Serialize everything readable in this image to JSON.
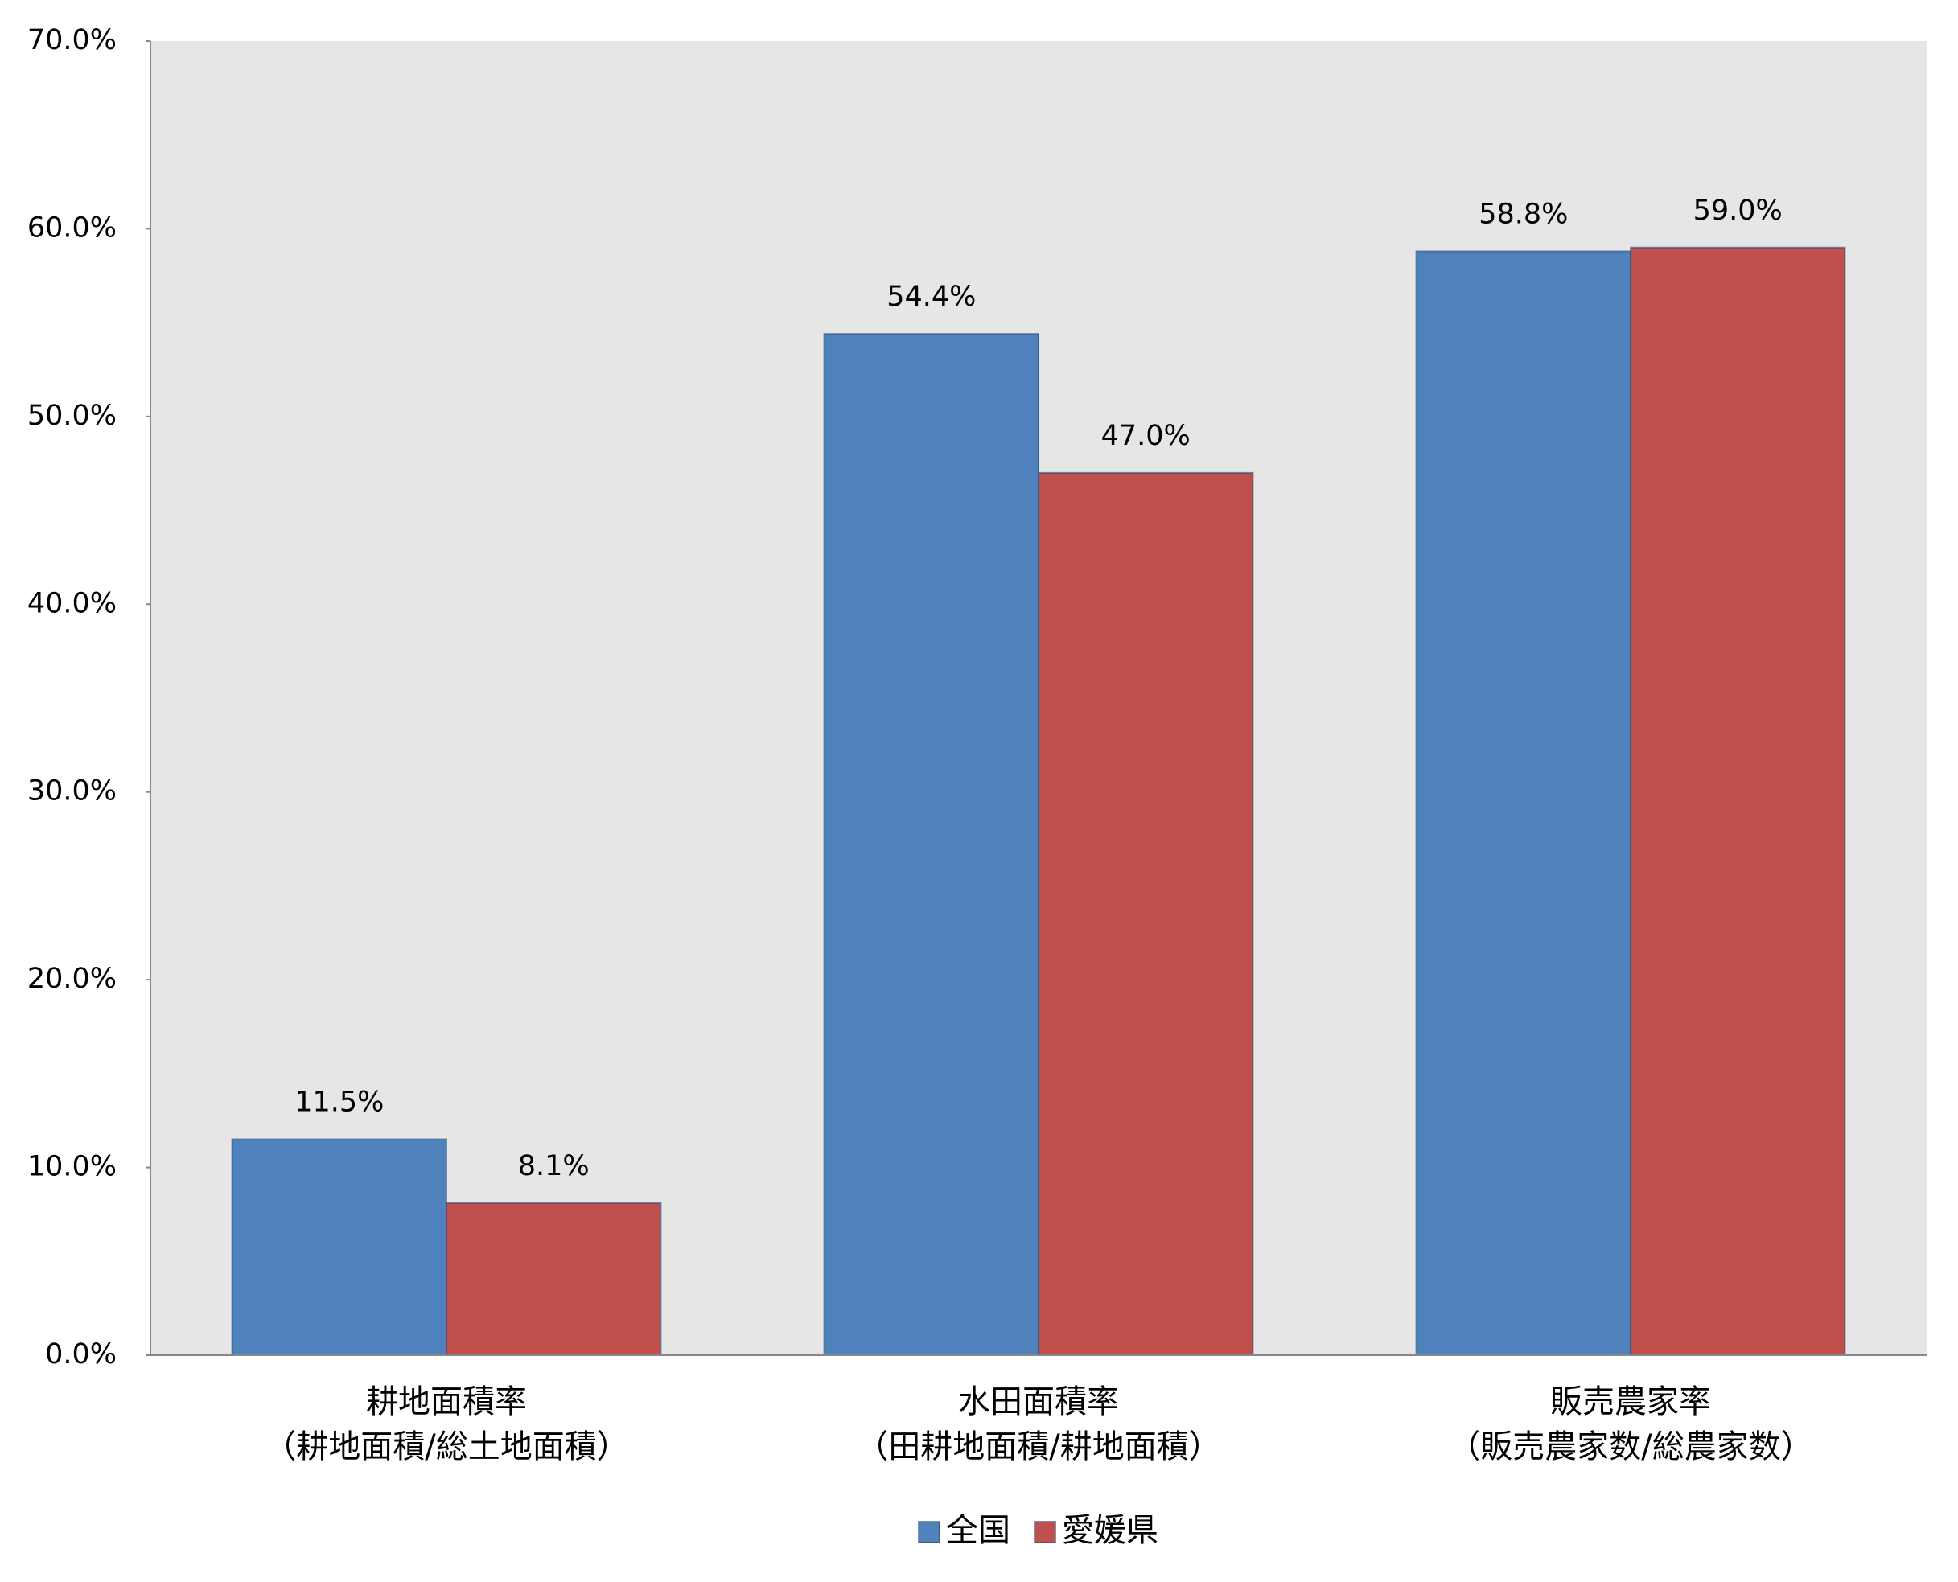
{
  "chart_data": {
    "type": "bar",
    "categories": [
      "耕地面積率\n（耕地面積/総土地面積）",
      "水田面積率\n（田耕地面積/耕地面積）",
      "販売農家率\n（販売農家数/総農家数）"
    ],
    "series": [
      {
        "name": "全国",
        "color": "#4f81bd",
        "values": [
          11.5,
          54.4,
          58.8
        ],
        "value_labels": [
          "11.5%",
          "54.4%",
          "58.8%"
        ]
      },
      {
        "name": "愛媛県",
        "color": "#c0504d",
        "values": [
          8.1,
          47.0,
          59.0
        ],
        "value_labels": [
          "8.1%",
          "47.0%",
          "59.0%"
        ]
      }
    ],
    "ylim": [
      0,
      70
    ],
    "yticks": [
      {
        "value": 0,
        "label": "0.0%"
      },
      {
        "value": 10,
        "label": "10.0%"
      },
      {
        "value": 20,
        "label": "20.0%"
      },
      {
        "value": 30,
        "label": "30.0%"
      },
      {
        "value": 40,
        "label": "40.0%"
      },
      {
        "value": 50,
        "label": "50.0%"
      },
      {
        "value": 60,
        "label": "60.0%"
      },
      {
        "value": 70,
        "label": "70.0%"
      }
    ],
    "grid": false,
    "legend": "bottom"
  }
}
